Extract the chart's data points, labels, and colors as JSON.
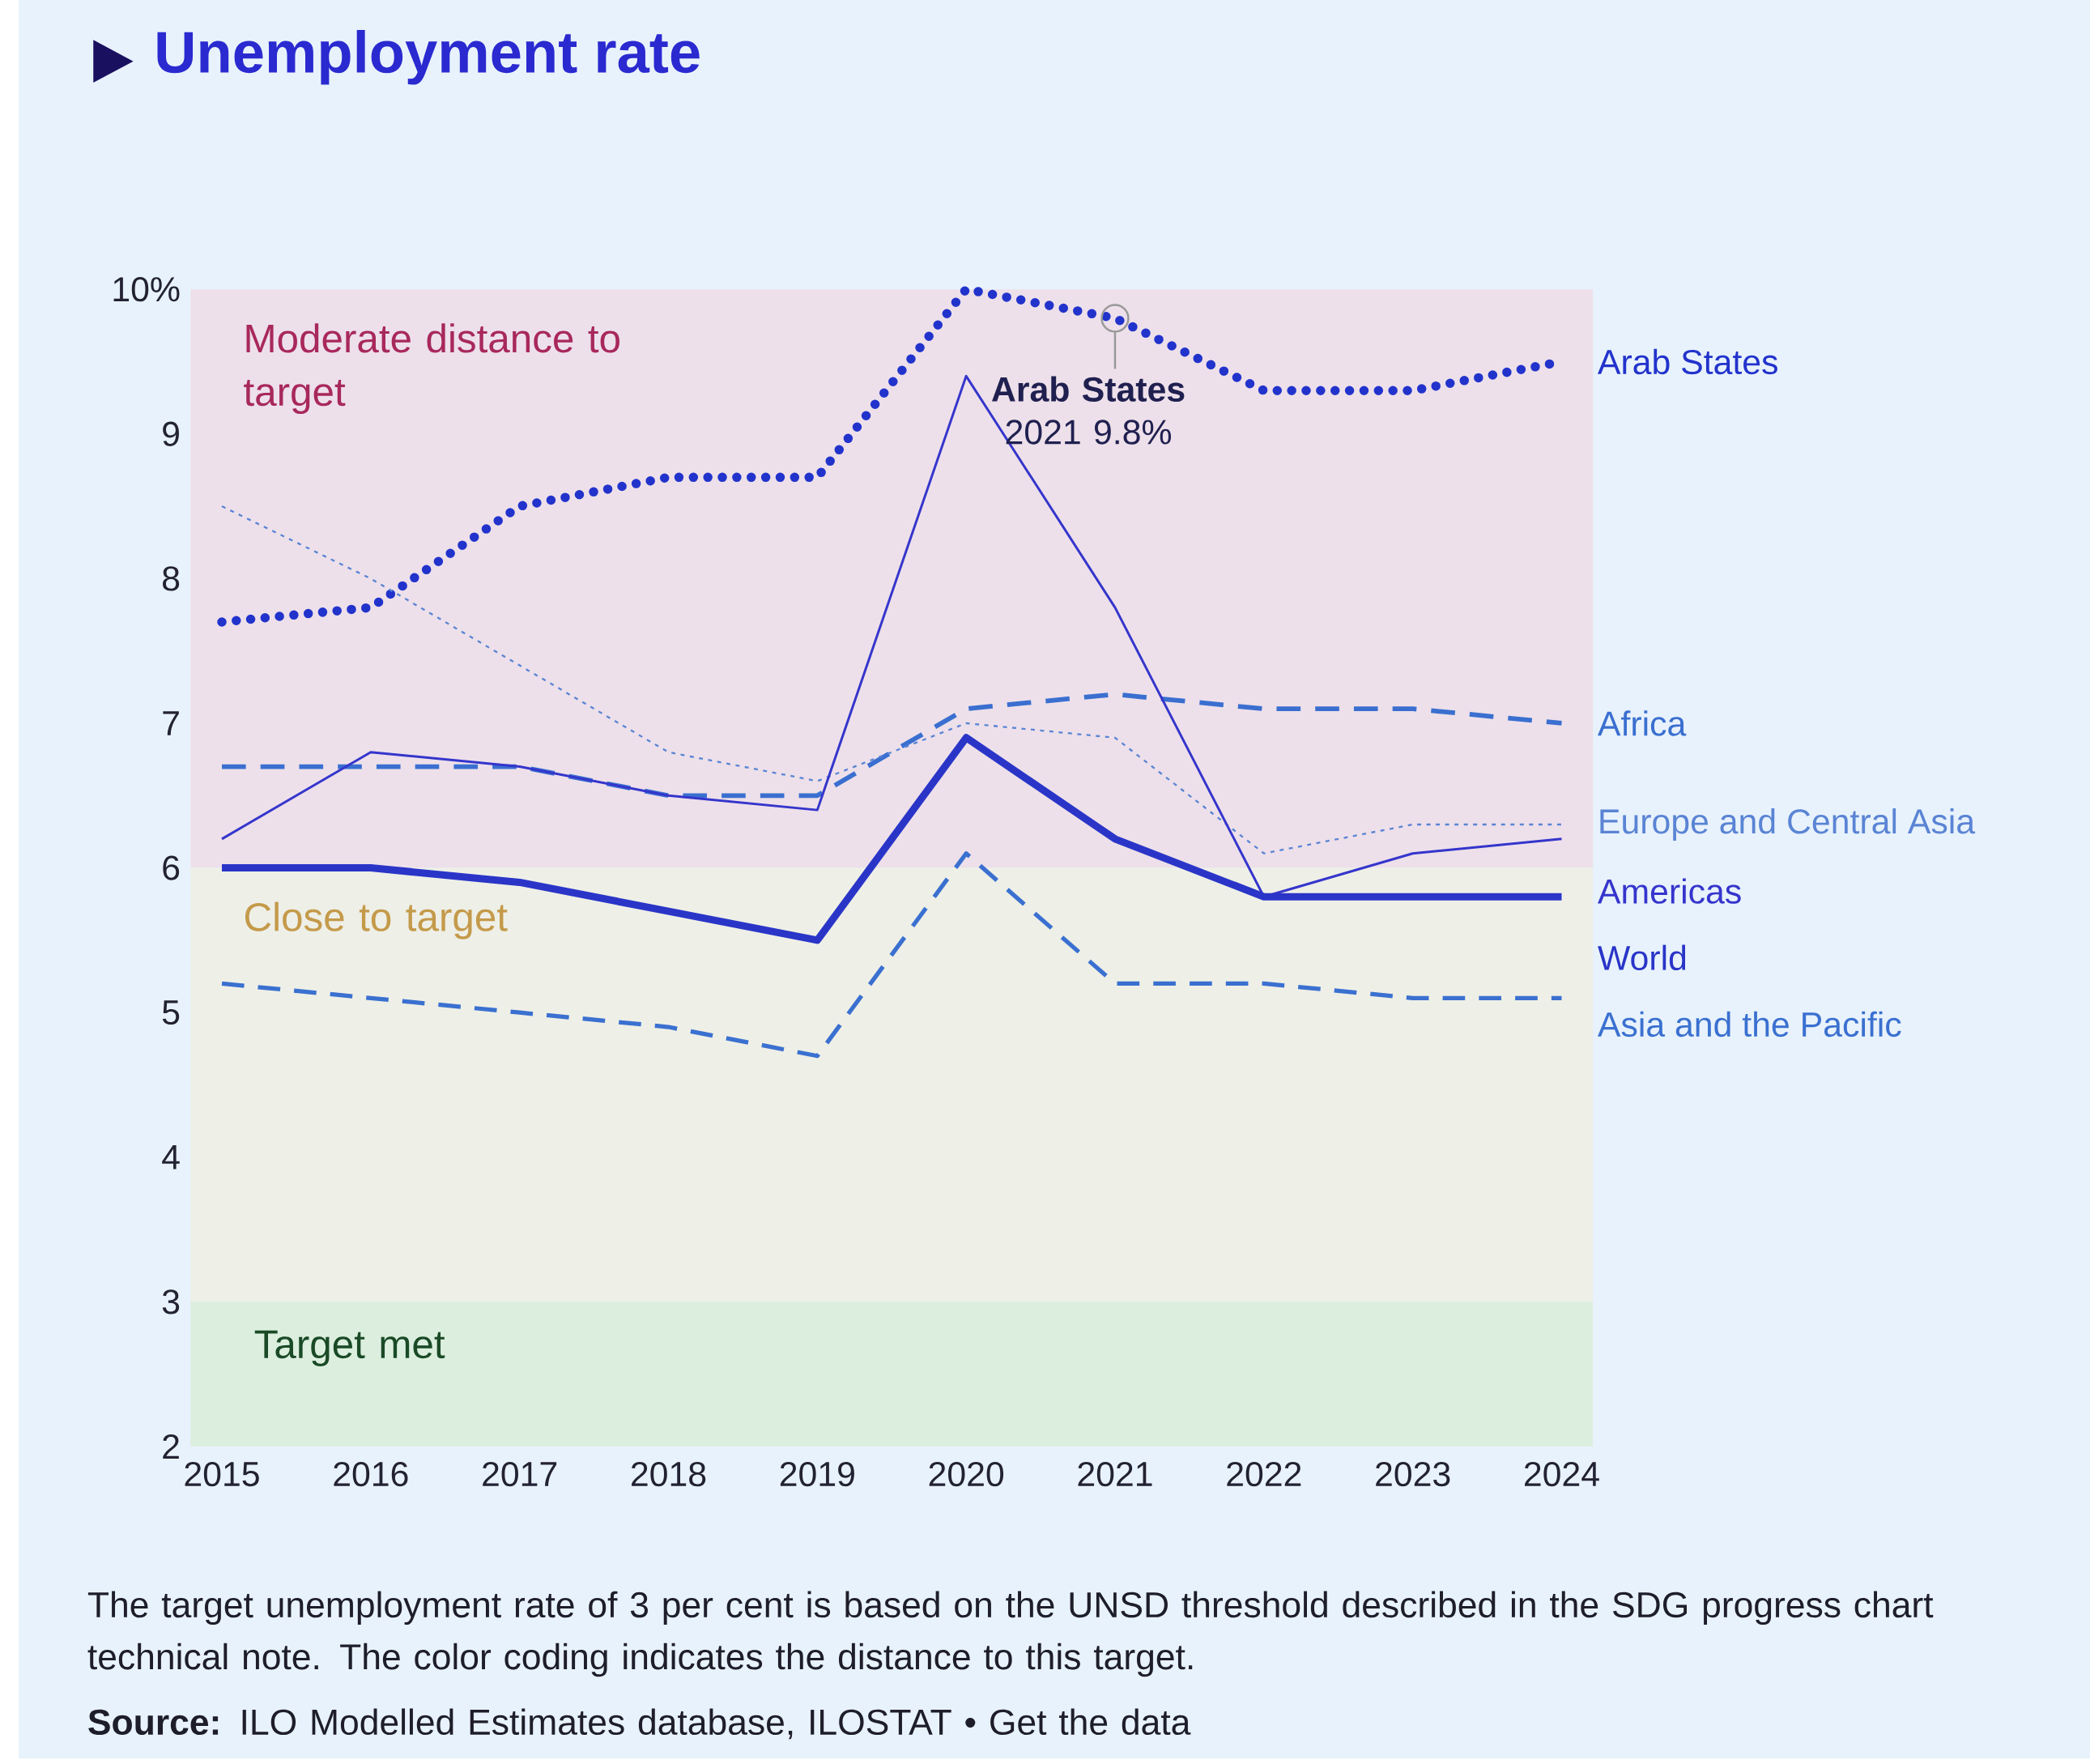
{
  "chart_data": {
    "type": "line",
    "title": "Unemployment rate",
    "x": [
      2015,
      2016,
      2017,
      2018,
      2019,
      2020,
      2021,
      2022,
      2023,
      2024
    ],
    "xlim": [
      2015,
      2024
    ],
    "xticks": [
      2015,
      2016,
      2017,
      2018,
      2019,
      2020,
      2021,
      2022,
      2023,
      2024
    ],
    "ylim": [
      2,
      10
    ],
    "yticks": [
      2,
      3,
      4,
      5,
      6,
      7,
      8,
      9,
      {
        "value": 10,
        "label": "10%"
      }
    ],
    "series": [
      {
        "name": "Arab States",
        "color": "#2233cc",
        "line_style": "dotted",
        "values": [
          7.7,
          7.8,
          8.5,
          8.7,
          8.7,
          10.0,
          9.8,
          9.3,
          9.3,
          9.5
        ]
      },
      {
        "name": "Africa",
        "color": "#3a6fd0",
        "line_style": "dashed",
        "values": [
          6.7,
          6.7,
          6.7,
          6.5,
          6.5,
          7.1,
          7.2,
          7.1,
          7.1,
          7.0
        ]
      },
      {
        "name": "Europe and Central Asia",
        "color": "#5a84d4",
        "line_style": "dotted",
        "values": [
          8.5,
          8.0,
          7.4,
          6.8,
          6.6,
          7.0,
          6.9,
          6.1,
          6.3,
          6.3
        ]
      },
      {
        "name": "Americas",
        "color": "#3535cc",
        "line_style": "solid",
        "values": [
          6.2,
          6.8,
          6.7,
          6.5,
          6.4,
          9.4,
          7.8,
          5.8,
          6.1,
          6.2
        ]
      },
      {
        "name": "World",
        "color": "#2a35c8",
        "line_style": "solid",
        "values": [
          6.0,
          6.0,
          5.9,
          5.7,
          5.5,
          6.9,
          6.2,
          5.8,
          5.8,
          5.8
        ]
      },
      {
        "name": "Asia and the Pacific",
        "color": "#3a70d0",
        "line_style": "dashed",
        "values": [
          5.2,
          5.1,
          5.0,
          4.9,
          4.7,
          6.1,
          5.2,
          5.2,
          5.1,
          5.1
        ]
      }
    ],
    "bands": [
      {
        "axis": "y",
        "from": 6,
        "to": 10,
        "label": "Moderate distance to target",
        "color": "#ede0ea"
      },
      {
        "axis": "y",
        "from": 3,
        "to": 6,
        "label": "Close to target",
        "color": "#eeefe7"
      },
      {
        "axis": "y",
        "from": 2,
        "to": 3,
        "label": "Target met",
        "color": "#dcefdf"
      }
    ],
    "annotations": [
      {
        "text": "**Arab States** 2021 9.8%",
        "x": 2021,
        "y": 9.8
      },
      "The target unemployment rate of 3 per cent is based on the UNSD threshold described in the SDG progress chart technical note. The color coding indicates the distance to this target.",
      "**Source:** ILO Modelled Estimates database, ILOSTAT • Get the data"
    ]
  }
}
